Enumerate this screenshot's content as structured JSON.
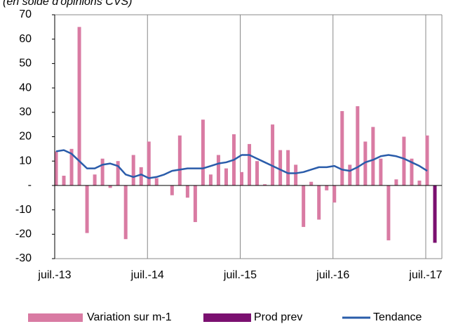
{
  "chart_data": {
    "type": "bar",
    "subtitle": "(en solde d'opinions CVS)",
    "categories": [
      "juil.-13",
      null,
      null,
      null,
      null,
      null,
      null,
      null,
      null,
      null,
      null,
      null,
      "juil.-14",
      null,
      null,
      null,
      null,
      null,
      null,
      null,
      null,
      null,
      null,
      null,
      "juil.-15",
      null,
      null,
      null,
      null,
      null,
      null,
      null,
      null,
      null,
      null,
      null,
      "juil.-16",
      null,
      null,
      null,
      null,
      null,
      null,
      null,
      null,
      null,
      null,
      null,
      "juil.-17",
      null
    ],
    "ylim": [
      -30,
      70
    ],
    "yticks": [
      -30,
      -20,
      -10,
      {
        "value": 0,
        "label": "-"
      },
      10,
      20,
      30,
      40,
      50,
      60,
      70
    ],
    "legend": "bottom",
    "series": [
      {
        "name": "Variation sur m-1",
        "type": "bar",
        "color": "#d97ba3",
        "values": [
          14,
          4,
          15,
          65,
          -19.5,
          4.5,
          11,
          -1,
          10,
          -22,
          12.5,
          7.5,
          18,
          3,
          0,
          -4,
          20.5,
          -5,
          -15,
          27,
          4.5,
          12.5,
          7,
          21,
          5.5,
          17,
          10,
          0.5,
          25,
          14.5,
          14.5,
          8.5,
          -17,
          1.5,
          -14,
          -2,
          -7,
          30.5,
          8.5,
          32.5,
          18,
          24,
          11,
          -22.5,
          2.5,
          20,
          11,
          2,
          20.5,
          null
        ]
      },
      {
        "name": "Prod prev",
        "type": "bar",
        "color": "#7b1070",
        "values": [
          null,
          null,
          null,
          null,
          null,
          null,
          null,
          null,
          null,
          null,
          null,
          null,
          null,
          null,
          null,
          null,
          null,
          null,
          null,
          null,
          null,
          null,
          null,
          null,
          null,
          null,
          null,
          null,
          null,
          null,
          null,
          null,
          null,
          null,
          null,
          null,
          null,
          null,
          null,
          null,
          null,
          null,
          null,
          null,
          null,
          null,
          null,
          null,
          null,
          -23.5
        ]
      },
      {
        "name": "Tendance",
        "type": "line",
        "color": "#2a5caa",
        "values": [
          14,
          14.5,
          13,
          10,
          7,
          7,
          8.5,
          9,
          8,
          4.5,
          3.5,
          4.5,
          3,
          3.5,
          4.5,
          6,
          6.5,
          7,
          7,
          7,
          8,
          9,
          9.5,
          10.5,
          12.5,
          12.5,
          11,
          9.5,
          8,
          6.5,
          5,
          5,
          5.5,
          6.5,
          7.5,
          7.5,
          8,
          6.5,
          6,
          7.5,
          9.5,
          10.5,
          12,
          12.5,
          12,
          11,
          9.5,
          8,
          6,
          null
        ]
      }
    ]
  }
}
